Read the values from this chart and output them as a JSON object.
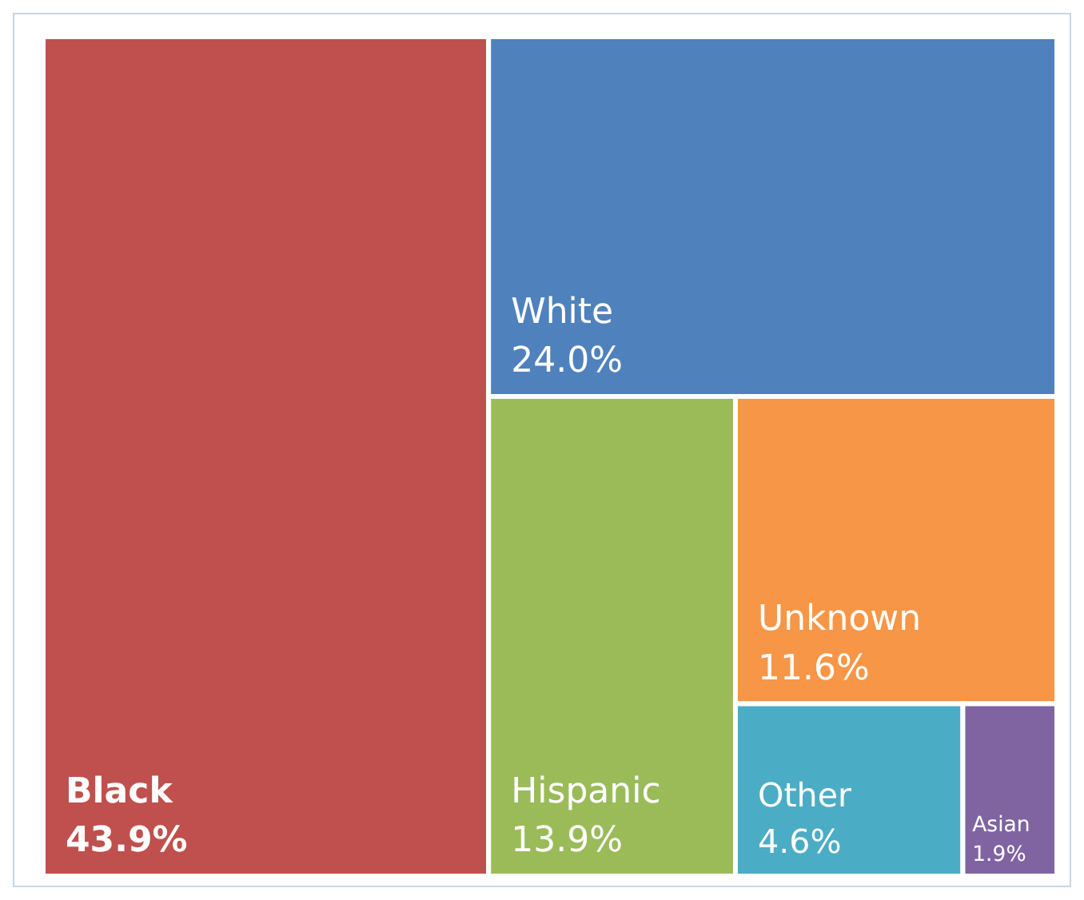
{
  "chart_data": {
    "type": "other",
    "categories": [
      "Black",
      "White",
      "Hispanic",
      "Unknown",
      "Other",
      "Asian"
    ],
    "values": [
      43.9,
      24.0,
      13.9,
      11.6,
      4.6,
      1.9
    ],
    "value_labels": [
      "43.9%",
      "24.0%",
      "13.9%",
      "11.6%",
      "4.6%",
      "1.9%"
    ],
    "colors": [
      "#c0504d",
      "#4f81bd",
      "#9bbb59",
      "#f79646",
      "#4bacc6",
      "#8064a2"
    ]
  }
}
